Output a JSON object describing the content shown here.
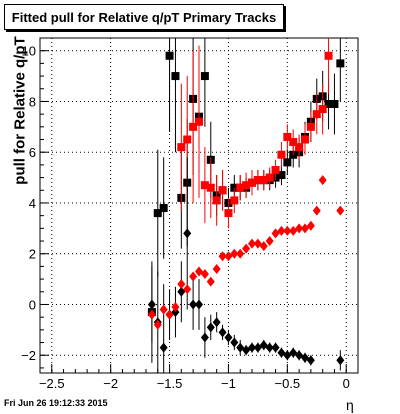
{
  "title": "Fitted pull for Relative q/pT  Primary Tracks",
  "ylabel": "pull for Relative q/pT",
  "xlabel": "η",
  "timestamp": "Fri Jun 26 19:12:33 2015",
  "chart_data": {
    "type": "scatter",
    "xlim": [
      -2.6,
      0.1
    ],
    "ylim": [
      -2.7,
      10.5
    ],
    "xticks": [
      -2.5,
      -2,
      -1.5,
      -1,
      -0.5,
      0
    ],
    "xtick_labels": [
      "−2.5",
      "−2",
      "−1.5",
      "−1",
      "−0.5",
      "0"
    ],
    "yticks": [
      -2,
      0,
      2,
      4,
      6,
      8,
      10
    ],
    "ytick_labels": [
      "−2",
      "0",
      "2",
      "4",
      "6",
      "8",
      "10"
    ],
    "grid": true,
    "legend": "none",
    "series": [
      {
        "color": "#000000",
        "marker": "square",
        "x": [
          -1.65,
          -1.6,
          -1.55,
          -1.5,
          -1.45,
          -1.4,
          -1.35,
          -1.3,
          -1.25,
          -1.2,
          -1.15,
          -1.1,
          -1.05,
          -1.0,
          -0.95,
          -0.9,
          -0.85,
          -0.8,
          -0.75,
          -0.7,
          -0.65,
          -0.6,
          -0.55,
          -0.5,
          -0.45,
          -0.4,
          -0.35,
          -0.3,
          -0.25,
          -0.2,
          -0.15,
          -0.1,
          -0.05
        ],
        "y": [
          -0.3,
          3.6,
          3.8,
          9.8,
          9.0,
          4.2,
          4.8,
          8.1,
          7.4,
          9.0,
          5.7,
          4.3,
          4.5,
          4.0,
          4.6,
          4.6,
          4.6,
          4.8,
          4.9,
          4.9,
          4.9,
          5.0,
          5.1,
          5.6,
          5.9,
          6.0,
          6.6,
          7.2,
          8.1,
          8.2,
          7.9,
          7.9,
          9.5
        ],
        "yerr": [
          2.0,
          2.5,
          2.0,
          3.0,
          3.0,
          2.0,
          2.5,
          3.0,
          2.5,
          2.0,
          1.5,
          0.8,
          0.8,
          0.6,
          0.5,
          0.5,
          0.4,
          0.4,
          0.4,
          0.4,
          0.4,
          0.4,
          0.4,
          0.5,
          0.5,
          0.6,
          0.6,
          0.8,
          0.8,
          1.0,
          1.0,
          1.2,
          1.5
        ]
      },
      {
        "color": "#ff0000",
        "marker": "square",
        "x": [
          -1.4,
          -1.35,
          -1.3,
          -1.25,
          -1.2,
          -1.15,
          -1.1,
          -1.05,
          -1.0,
          -0.95,
          -0.9,
          -0.85,
          -0.8,
          -0.75,
          -0.7,
          -0.65,
          -0.6,
          -0.55,
          -0.5,
          -0.45,
          -0.4,
          -0.35,
          -0.3,
          -0.25,
          -0.2,
          -0.15
        ],
        "y": [
          6.2,
          6.5,
          7.0,
          7.2,
          4.7,
          4.6,
          4.1,
          4.5,
          3.6,
          4.1,
          4.6,
          4.7,
          4.8,
          4.9,
          4.9,
          5.0,
          5.3,
          5.9,
          6.6,
          6.4,
          6.2,
          6.5,
          7.0,
          7.5,
          7.7,
          9.8
        ],
        "yerr": [
          2.5,
          2.5,
          3.0,
          3.0,
          1.5,
          1.2,
          1.0,
          0.8,
          0.6,
          0.5,
          0.5,
          0.5,
          0.5,
          0.4,
          0.4,
          0.4,
          0.4,
          0.5,
          0.5,
          0.5,
          0.5,
          0.6,
          0.6,
          0.8,
          1.0,
          1.5
        ]
      },
      {
        "color": "#000000",
        "marker": "diamond",
        "x": [
          -1.65,
          -1.6,
          -1.55,
          -1.5,
          -1.45,
          -1.4,
          -1.35,
          -1.3,
          -1.25,
          -1.2,
          -1.15,
          -1.1,
          -1.05,
          -1.0,
          -0.95,
          -0.9,
          -0.85,
          -0.8,
          -0.75,
          -0.7,
          -0.65,
          -0.6,
          -0.55,
          -0.5,
          -0.45,
          -0.4,
          -0.35,
          -0.3,
          -0.05
        ],
        "y": [
          0.0,
          -0.7,
          -1.7,
          -0.4,
          -0.3,
          0.5,
          2.8,
          0.0,
          0.0,
          -1.3,
          -0.9,
          -0.7,
          -1.1,
          -1.3,
          -1.5,
          -1.7,
          -1.8,
          -1.7,
          -1.7,
          -1.6,
          -1.7,
          -1.7,
          -1.9,
          -2.0,
          -1.9,
          -2.0,
          -2.1,
          -2.2,
          -2.2
        ],
        "yerr": [
          1.5,
          2.0,
          2.5,
          1.0,
          1.0,
          1.2,
          3.0,
          1.0,
          1.0,
          0.8,
          0.5,
          0.4,
          0.3,
          0.3,
          0.3,
          0.3,
          0.2,
          0.2,
          0.2,
          0.2,
          0.2,
          0.2,
          0.2,
          0.2,
          0.2,
          0.2,
          0.2,
          0.2,
          0.4
        ]
      },
      {
        "color": "#ff0000",
        "marker": "diamond",
        "x": [
          -1.65,
          -1.6,
          -1.55,
          -1.5,
          -1.45,
          -1.4,
          -1.35,
          -1.3,
          -1.25,
          -1.2,
          -1.15,
          -1.1,
          -1.05,
          -1.0,
          -0.95,
          -0.9,
          -0.85,
          -0.8,
          -0.75,
          -0.7,
          -0.65,
          -0.6,
          -0.55,
          -0.5,
          -0.45,
          -0.4,
          -0.35,
          -0.3,
          -0.25,
          -0.2,
          -0.05
        ],
        "y": [
          -0.4,
          -0.8,
          -0.2,
          -0.4,
          -0.1,
          0.8,
          0.6,
          1.1,
          1.3,
          1.2,
          0.9,
          1.4,
          1.9,
          1.9,
          2.0,
          2.0,
          2.2,
          2.4,
          2.4,
          2.3,
          2.5,
          2.8,
          2.9,
          2.9,
          2.9,
          3.0,
          3.0,
          3.1,
          3.7,
          4.9,
          3.7
        ]
      }
    ]
  }
}
